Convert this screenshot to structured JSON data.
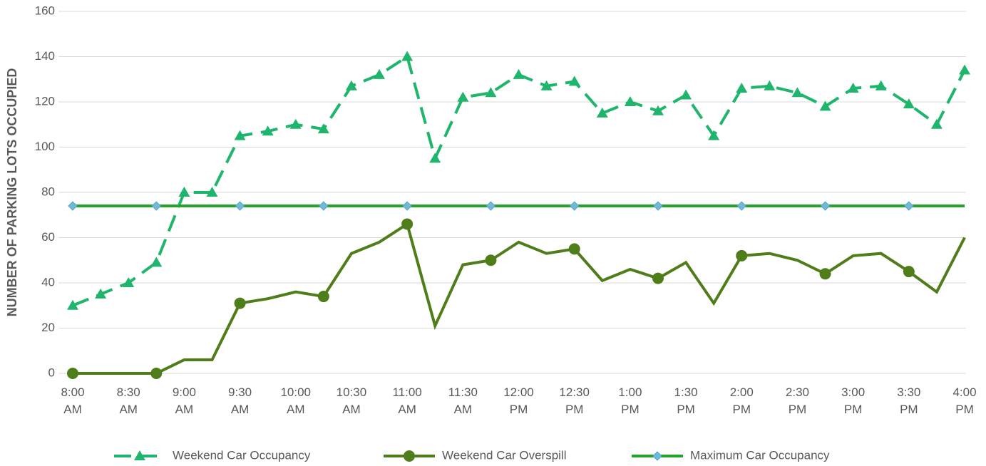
{
  "chart_data": {
    "type": "line",
    "y_label": "NUMBER OF PARKING LOTS OCCUPIED",
    "categories": [
      "8:00 AM",
      null,
      "8:30 AM",
      null,
      "9:00 AM",
      null,
      "9:30 AM",
      null,
      "10:00 AM",
      null,
      "10:30 AM",
      null,
      "11:00 AM",
      null,
      "11:30 AM",
      null,
      "12:00 PM",
      null,
      "12:30 PM",
      null,
      "1:00 PM",
      null,
      "1:30 PM",
      null,
      "2:00 PM",
      null,
      "2:30 PM",
      null,
      "3:00 PM",
      null,
      "3:30 PM",
      null,
      "4:00 PM"
    ],
    "series": [
      {
        "name": "Weekend Car Occupancy",
        "color": "#1fb56c",
        "marker": "triangle",
        "dashed": true,
        "marker_every": 1,
        "values": [
          30,
          35,
          40,
          49,
          80,
          80,
          105,
          107,
          110,
          108,
          127,
          132,
          140,
          95,
          122,
          124,
          132,
          127,
          129,
          115,
          120,
          116,
          123,
          105,
          126,
          127,
          124,
          118,
          126,
          127,
          119,
          110,
          134
        ]
      },
      {
        "name": "Weekend Car Overspill",
        "color": "#4f7d1a",
        "marker": "circle",
        "dashed": false,
        "marker_every": 3,
        "values": [
          0,
          0,
          0,
          0,
          6,
          6,
          31,
          33,
          36,
          34,
          53,
          58,
          66,
          21,
          48,
          50,
          58,
          53,
          55,
          41,
          46,
          42,
          49,
          31,
          52,
          53,
          50,
          44,
          52,
          53,
          45,
          36,
          60
        ]
      },
      {
        "name": "Maximum Car Occupancy",
        "color": "#22a52a",
        "marker": "diamond",
        "marker_color": "#74b8d8",
        "dashed": false,
        "marker_every": 3,
        "values": [
          74,
          74,
          74,
          74,
          74,
          74,
          74,
          74,
          74,
          74,
          74,
          74,
          74,
          74,
          74,
          74,
          74,
          74,
          74,
          74,
          74,
          74,
          74,
          74,
          74,
          74,
          74,
          74,
          74,
          74,
          74,
          74,
          74
        ]
      }
    ],
    "ylim": [
      0,
      160
    ],
    "yticks": [
      0,
      20,
      40,
      60,
      80,
      100,
      120,
      140,
      160
    ],
    "grid": true,
    "legend": "bottom"
  }
}
